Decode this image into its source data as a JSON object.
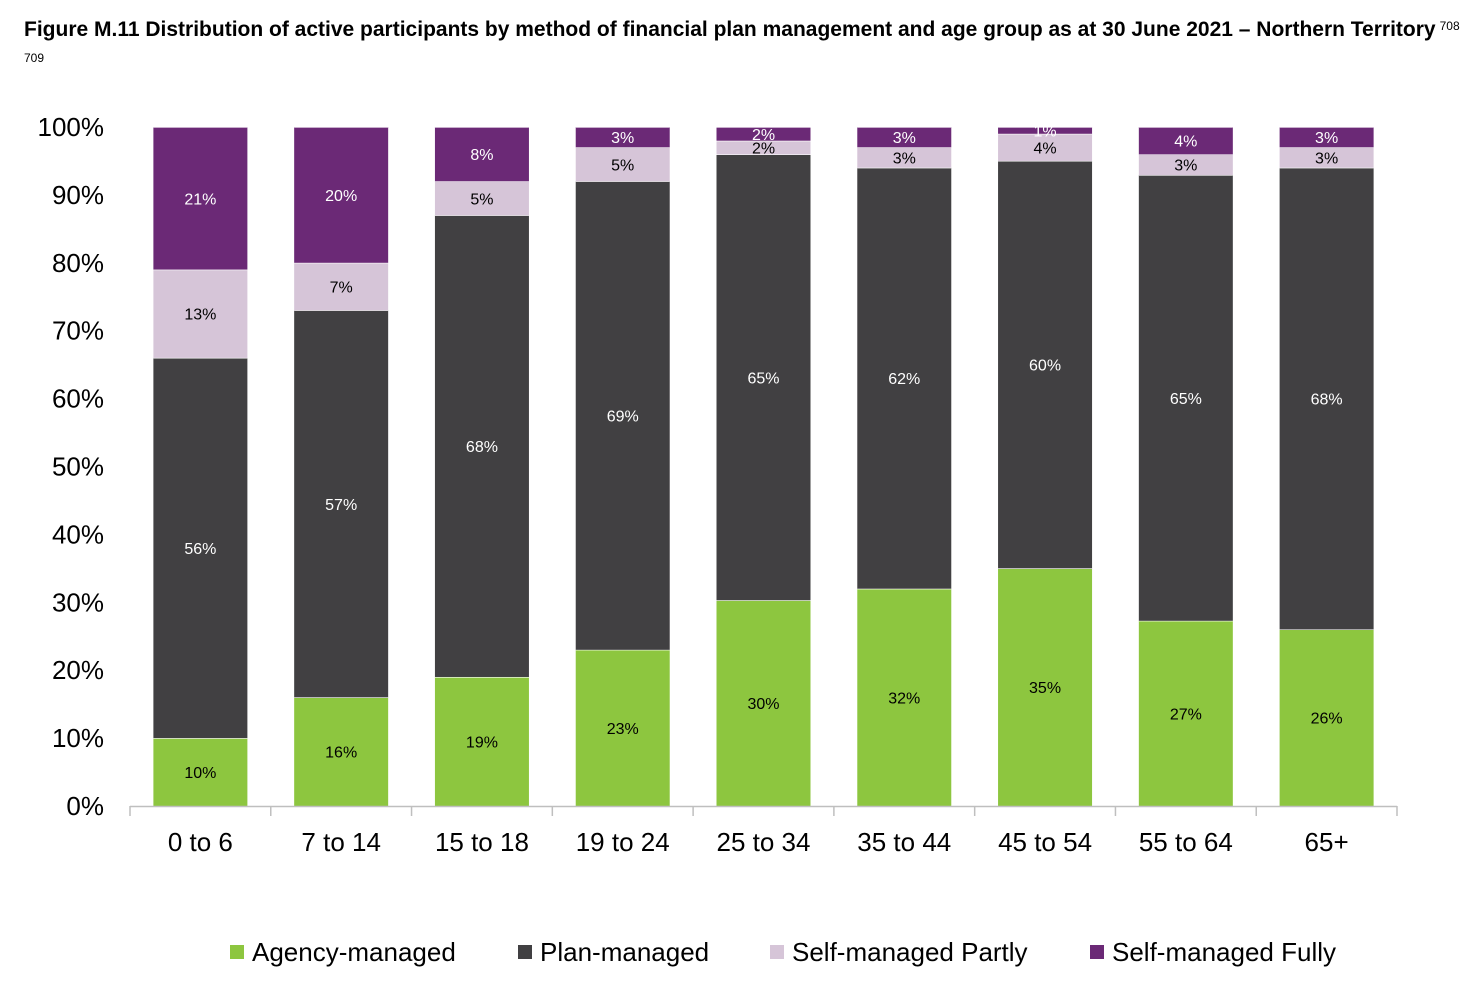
{
  "figure": {
    "title": "Figure M.11 Distribution of active participants by method of financial plan management and age group as at 30 June 2021 – Northern Territory",
    "footnote_refs": "708 709"
  },
  "chart_data": {
    "type": "bar",
    "stacked": true,
    "categories": [
      "0 to 6",
      "7 to 14",
      "15 to 18",
      "19 to 24",
      "25 to 34",
      "35 to 44",
      "45 to 54",
      "55 to 64",
      "65+"
    ],
    "series": [
      {
        "name": "Agency-managed",
        "color": "#8dc63f",
        "values": [
          10,
          16,
          19,
          23,
          30,
          32,
          35,
          27,
          26
        ],
        "labels": [
          "10%",
          "16%",
          "19%",
          "23%",
          "30%",
          "32%",
          "35%",
          "27%",
          "26%"
        ],
        "label_color": "#000000"
      },
      {
        "name": "Plan-managed",
        "color": "#414042",
        "values": [
          56,
          57,
          68,
          69,
          65,
          62,
          60,
          65,
          68
        ],
        "labels": [
          "56%",
          "57%",
          "68%",
          "69%",
          "65%",
          "62%",
          "60%",
          "65%",
          "68%"
        ],
        "label_color": "#ffffff"
      },
      {
        "name": "Self-managed Partly",
        "color": "#d6c5d8",
        "values": [
          13,
          7,
          5,
          5,
          2,
          3,
          4,
          3,
          3
        ],
        "labels": [
          "13%",
          "7%",
          "5%",
          "5%",
          "2%",
          "3%",
          "4%",
          "3%",
          "3%"
        ],
        "label_color": "#000000"
      },
      {
        "name": "Self-managed Fully",
        "color": "#6b2976",
        "values": [
          21,
          20,
          8,
          3,
          2,
          3,
          1,
          4,
          3
        ],
        "labels": [
          "21%",
          "20%",
          "8%",
          "3%",
          "2%",
          "3%",
          "1%",
          "4%",
          "3%"
        ],
        "label_color": "#ffffff"
      }
    ],
    "ylim": [
      0,
      100
    ],
    "yticks": [
      "0%",
      "10%",
      "20%",
      "30%",
      "40%",
      "50%",
      "60%",
      "70%",
      "80%",
      "90%",
      "100%"
    ],
    "grid": false,
    "legend_position": "bottom"
  }
}
